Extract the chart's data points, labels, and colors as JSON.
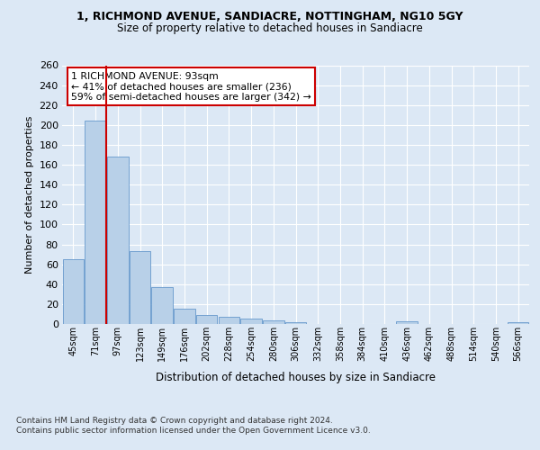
{
  "title1": "1, RICHMOND AVENUE, SANDIACRE, NOTTINGHAM, NG10 5GY",
  "title2": "Size of property relative to detached houses in Sandiacre",
  "xlabel": "Distribution of detached houses by size in Sandiacre",
  "ylabel": "Number of detached properties",
  "categories": [
    "45sqm",
    "71sqm",
    "97sqm",
    "123sqm",
    "149sqm",
    "176sqm",
    "202sqm",
    "228sqm",
    "254sqm",
    "280sqm",
    "306sqm",
    "332sqm",
    "358sqm",
    "384sqm",
    "410sqm",
    "436sqm",
    "462sqm",
    "488sqm",
    "514sqm",
    "540sqm",
    "566sqm"
  ],
  "values": [
    65,
    204,
    168,
    73,
    37,
    15,
    9,
    7,
    5,
    4,
    2,
    0,
    0,
    0,
    0,
    3,
    0,
    0,
    0,
    0,
    2
  ],
  "bar_color": "#b8d0e8",
  "bar_edge_color": "#6699cc",
  "vline_x": 2.0,
  "vline_color": "#cc0000",
  "annotation_text": "1 RICHMOND AVENUE: 93sqm\n← 41% of detached houses are smaller (236)\n59% of semi-detached houses are larger (342) →",
  "annotation_box_color": "white",
  "annotation_box_edge": "#cc0000",
  "ylim": [
    0,
    260
  ],
  "yticks": [
    0,
    20,
    40,
    60,
    80,
    100,
    120,
    140,
    160,
    180,
    200,
    220,
    240,
    260
  ],
  "background_color": "#dce8f5",
  "axes_background": "#dce8f5",
  "grid_color": "#c8d8ec",
  "footer1": "Contains HM Land Registry data © Crown copyright and database right 2024.",
  "footer2": "Contains public sector information licensed under the Open Government Licence v3.0."
}
